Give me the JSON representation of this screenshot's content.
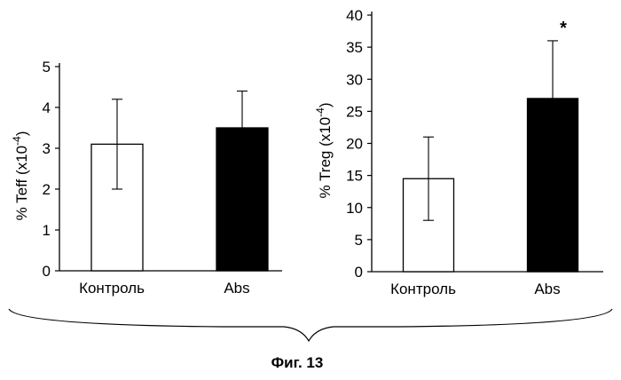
{
  "caption": "Фиг. 13",
  "chart_data": [
    {
      "type": "bar",
      "ylabel": "% Teff (x10",
      "ylabel_exp": "-4",
      "ylabel_close": ")",
      "categories": [
        "Контроль",
        "Abs"
      ],
      "values": [
        3.1,
        3.5
      ],
      "errors": [
        1.1,
        0.9
      ],
      "bar_colors": [
        "#ffffff",
        "#000000"
      ],
      "ylim": [
        0,
        5
      ],
      "yticks": [
        "0",
        "1",
        "2",
        "3",
        "4",
        "5"
      ],
      "annotations": [
        "",
        ""
      ]
    },
    {
      "type": "bar",
      "ylabel": "% Treg (x10",
      "ylabel_exp": "-4",
      "ylabel_close": ")",
      "categories": [
        "Контроль",
        "Abs"
      ],
      "values": [
        14.5,
        27
      ],
      "errors": [
        6.5,
        9
      ],
      "bar_colors": [
        "#ffffff",
        "#000000"
      ],
      "ylim": [
        0,
        40
      ],
      "yticks": [
        "0",
        "5",
        "10",
        "15",
        "20",
        "25",
        "30",
        "35",
        "40"
      ],
      "annotations": [
        "",
        "*"
      ]
    }
  ]
}
